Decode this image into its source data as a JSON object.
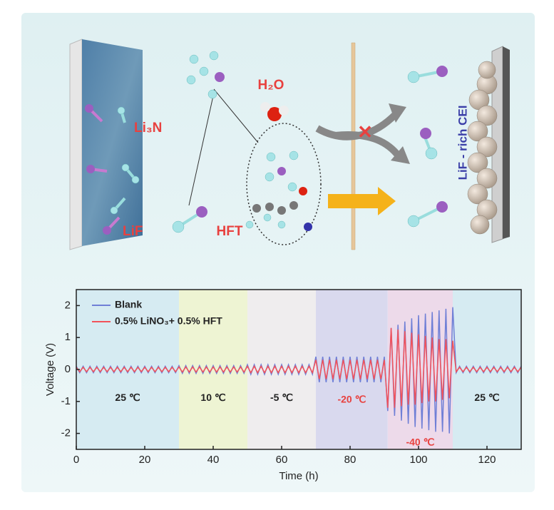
{
  "schematic": {
    "labels": {
      "li3n": "Li₃N",
      "lif": "LiF",
      "h2o": "H₂O",
      "hft": "HFT",
      "cei": "LiF - rich CEI"
    }
  },
  "chart_data": {
    "type": "line",
    "xlabel": "Time (h)",
    "ylabel": "Voltage (V)",
    "xlim": [
      0,
      130
    ],
    "xticks": [
      0,
      20,
      40,
      60,
      80,
      100,
      120
    ],
    "ylim": [
      -2.5,
      2.5
    ],
    "yticks": [
      -2,
      -1,
      0,
      1,
      2
    ],
    "legend": "upper left",
    "regions": [
      {
        "label": "25 ℃",
        "start": 0,
        "end": 30,
        "color": "#d6ebf2",
        "label_color": "#222222"
      },
      {
        "label": "10 ℃",
        "start": 30,
        "end": 50,
        "color": "#eef4d3",
        "label_color": "#222222"
      },
      {
        "label": "-5 ℃",
        "start": 50,
        "end": 70,
        "color": "#efedee",
        "label_color": "#222222"
      },
      {
        "label": "-20 ℃",
        "start": 70,
        "end": 91,
        "color": "#d9d9ee",
        "label_color": "#e8413f"
      },
      {
        "label": "-40 ℃",
        "start": 91,
        "end": 110,
        "color": "#eddaea",
        "label_color": "#e8413f"
      },
      {
        "label": "25 ℃",
        "start": 110,
        "end": 130,
        "color": "#d6ebf2",
        "label_color": "#222222"
      }
    ],
    "x": [
      0,
      1,
      2,
      3,
      4,
      5,
      6,
      7,
      8,
      9,
      10,
      11,
      12,
      13,
      14,
      15,
      16,
      17,
      18,
      19,
      20,
      21,
      22,
      23,
      24,
      25,
      26,
      27,
      28,
      29,
      30,
      31,
      32,
      33,
      34,
      35,
      36,
      37,
      38,
      39,
      40,
      41,
      42,
      43,
      44,
      45,
      46,
      47,
      48,
      49,
      50,
      51,
      52,
      53,
      54,
      55,
      56,
      57,
      58,
      59,
      60,
      61,
      62,
      63,
      64,
      65,
      66,
      67,
      68,
      69,
      70,
      71,
      72,
      73,
      74,
      75,
      76,
      77,
      78,
      79,
      80,
      81,
      82,
      83,
      84,
      85,
      86,
      87,
      88,
      89,
      90,
      91,
      92,
      93,
      94,
      95,
      96,
      97,
      98,
      99,
      100,
      101,
      102,
      103,
      104,
      105,
      106,
      107,
      108,
      109,
      110,
      111,
      112,
      113,
      114,
      115,
      116,
      117,
      118,
      119,
      120,
      121,
      122,
      123,
      124,
      125,
      126,
      127,
      128,
      129,
      130
    ],
    "series": [
      {
        "name": "Blank",
        "color": "#6f7fd6",
        "values": [
          0.1,
          -0.1,
          0.1,
          -0.1,
          0.1,
          -0.1,
          0.1,
          -0.1,
          0.1,
          -0.1,
          0.1,
          -0.1,
          0.1,
          -0.1,
          0.1,
          -0.1,
          0.1,
          -0.1,
          0.1,
          -0.1,
          0.1,
          -0.1,
          0.1,
          -0.1,
          0.1,
          -0.1,
          0.1,
          -0.1,
          0.1,
          -0.1,
          0.12,
          -0.12,
          0.12,
          -0.12,
          0.12,
          -0.12,
          0.12,
          -0.12,
          0.12,
          -0.12,
          0.12,
          -0.12,
          0.12,
          -0.12,
          0.12,
          -0.12,
          0.12,
          -0.12,
          0.12,
          -0.12,
          0.15,
          -0.15,
          0.15,
          -0.15,
          0.15,
          -0.15,
          0.15,
          -0.15,
          0.15,
          -0.15,
          0.15,
          -0.15,
          0.15,
          -0.15,
          0.15,
          -0.15,
          0.15,
          -0.15,
          0.15,
          -0.15,
          0.4,
          -0.4,
          0.4,
          -0.4,
          0.4,
          -0.4,
          0.4,
          -0.4,
          0.4,
          -0.4,
          0.4,
          -0.4,
          0.4,
          -0.4,
          0.4,
          -0.4,
          0.4,
          -0.4,
          0.4,
          -0.4,
          0.4,
          -1.3,
          1.3,
          -1.45,
          1.4,
          -1.6,
          1.5,
          -1.7,
          1.6,
          -1.8,
          1.7,
          -1.85,
          1.75,
          -1.9,
          1.8,
          -1.95,
          1.85,
          -1.95,
          1.9,
          -2.0,
          1.95,
          -0.1,
          0.1,
          -0.1,
          0.1,
          -0.1,
          0.1,
          -0.1,
          0.1,
          -0.1,
          0.1,
          -0.1,
          0.1,
          -0.1,
          0.1,
          -0.1,
          0.1,
          -0.1,
          0.1,
          -0.1,
          0.1
        ]
      },
      {
        "name": "0.5% LiNO₃+ 0.5% HFT",
        "color": "#f2525a",
        "values": [
          0.07,
          -0.07,
          0.07,
          -0.07,
          0.07,
          -0.07,
          0.07,
          -0.07,
          0.07,
          -0.07,
          0.07,
          -0.07,
          0.07,
          -0.07,
          0.07,
          -0.07,
          0.07,
          -0.07,
          0.07,
          -0.07,
          0.07,
          -0.07,
          0.07,
          -0.07,
          0.07,
          -0.07,
          0.07,
          -0.07,
          0.07,
          -0.07,
          0.08,
          -0.08,
          0.08,
          -0.08,
          0.08,
          -0.08,
          0.08,
          -0.08,
          0.08,
          -0.08,
          0.08,
          -0.08,
          0.08,
          -0.08,
          0.08,
          -0.08,
          0.08,
          -0.08,
          0.08,
          -0.08,
          0.1,
          -0.1,
          0.1,
          -0.1,
          0.1,
          -0.1,
          0.1,
          -0.1,
          0.1,
          -0.1,
          0.1,
          -0.1,
          0.1,
          -0.1,
          0.1,
          -0.1,
          0.1,
          -0.1,
          0.1,
          -0.1,
          0.3,
          -0.3,
          0.3,
          -0.3,
          0.3,
          -0.3,
          0.3,
          -0.3,
          0.3,
          -0.3,
          0.3,
          -0.3,
          0.3,
          -0.3,
          0.3,
          -0.3,
          0.3,
          -0.3,
          0.3,
          -0.3,
          0.3,
          -1.2,
          1.3,
          -1.2,
          1.25,
          -1.15,
          1.2,
          -1.1,
          1.15,
          -1.1,
          1.1,
          -1.05,
          1.05,
          -1.0,
          1.0,
          -1.0,
          0.95,
          -0.95,
          0.95,
          -0.9,
          0.9,
          -0.07,
          0.07,
          -0.07,
          0.07,
          -0.07,
          0.07,
          -0.07,
          0.07,
          -0.07,
          0.07,
          -0.07,
          0.07,
          -0.07,
          0.07,
          -0.07,
          0.07,
          -0.07,
          0.07,
          -0.07,
          0.07
        ]
      }
    ]
  }
}
